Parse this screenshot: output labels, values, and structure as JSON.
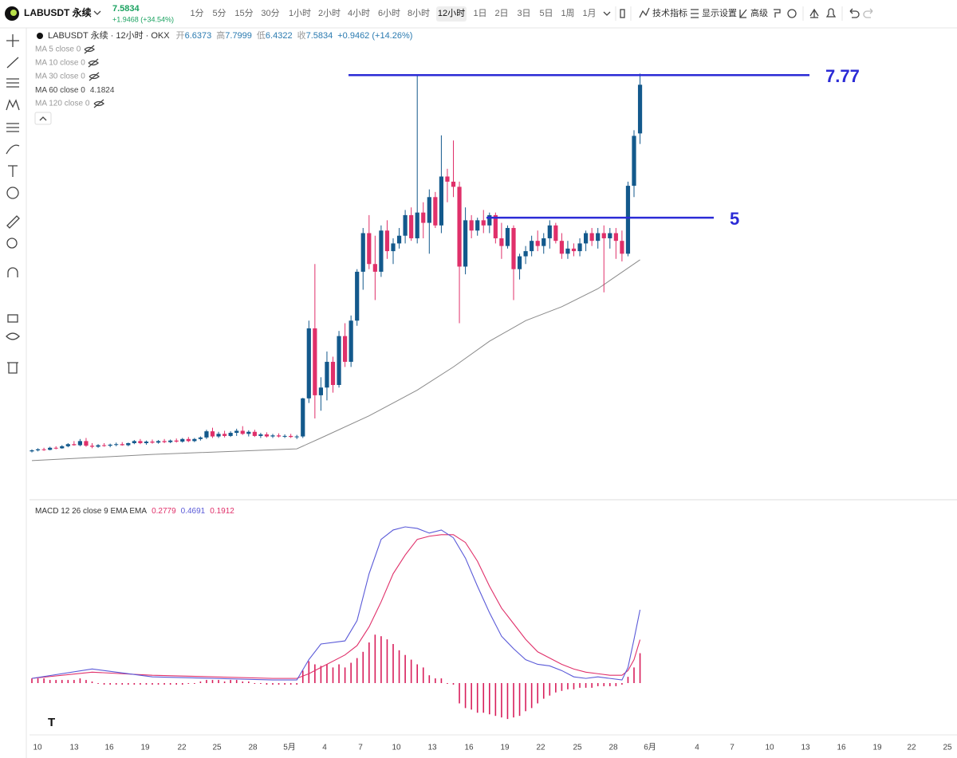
{
  "header": {
    "symbol": "LABUSDT 永续",
    "price": "7.5834",
    "change": "+1.9468 (+34.54%)",
    "intervals": [
      "1分",
      "5分",
      "15分",
      "30分",
      "1小时",
      "2小时",
      "4小时",
      "6小时",
      "8小时",
      "12小时",
      "1日",
      "2日",
      "3日",
      "5日",
      "1周",
      "1月"
    ],
    "active_interval": 9,
    "tools": [
      "技术指标",
      "显示设置",
      "高级"
    ]
  },
  "legend": {
    "title": "LABUSDT 永续 · 12小时 · OKX",
    "open_label": "开",
    "open": "6.6373",
    "high_label": "高",
    "high": "7.7999",
    "low_label": "低",
    "low": "6.4322",
    "close_label": "收",
    "close": "7.5834",
    "change": "+0.9462 (+14.26%)",
    "ma": [
      "MA 5 close 0",
      "MA 10 close 0",
      "MA 30 close 0",
      "MA 60 close 0",
      "MA 120 close 0"
    ],
    "ma60_value": "4.1824"
  },
  "chart_data": [
    {
      "type": "candlestick",
      "up_color": "#13598c",
      "down_color": "#e0306a",
      "ylim": [
        0,
        8
      ],
      "candles": [
        [
          0.46,
          0.5,
          0.44,
          0.48
        ],
        [
          0.48,
          0.52,
          0.46,
          0.5
        ],
        [
          0.5,
          0.53,
          0.47,
          0.49
        ],
        [
          0.49,
          0.55,
          0.48,
          0.53
        ],
        [
          0.53,
          0.56,
          0.5,
          0.52
        ],
        [
          0.52,
          0.58,
          0.51,
          0.56
        ],
        [
          0.56,
          0.62,
          0.54,
          0.6
        ],
        [
          0.6,
          0.66,
          0.57,
          0.58
        ],
        [
          0.58,
          0.7,
          0.56,
          0.66
        ],
        [
          0.66,
          0.72,
          0.55,
          0.57
        ],
        [
          0.57,
          0.62,
          0.52,
          0.55
        ],
        [
          0.55,
          0.6,
          0.53,
          0.58
        ],
        [
          0.58,
          0.62,
          0.55,
          0.57
        ],
        [
          0.57,
          0.61,
          0.54,
          0.59
        ],
        [
          0.59,
          0.63,
          0.56,
          0.6
        ],
        [
          0.6,
          0.64,
          0.57,
          0.58
        ],
        [
          0.58,
          0.63,
          0.56,
          0.62
        ],
        [
          0.62,
          0.68,
          0.6,
          0.66
        ],
        [
          0.66,
          0.7,
          0.6,
          0.62
        ],
        [
          0.62,
          0.67,
          0.59,
          0.65
        ],
        [
          0.65,
          0.69,
          0.61,
          0.63
        ],
        [
          0.63,
          0.68,
          0.61,
          0.66
        ],
        [
          0.66,
          0.7,
          0.62,
          0.64
        ],
        [
          0.64,
          0.69,
          0.62,
          0.67
        ],
        [
          0.67,
          0.71,
          0.63,
          0.65
        ],
        [
          0.65,
          0.72,
          0.63,
          0.7
        ],
        [
          0.7,
          0.74,
          0.64,
          0.66
        ],
        [
          0.66,
          0.72,
          0.64,
          0.7
        ],
        [
          0.7,
          0.75,
          0.67,
          0.73
        ],
        [
          0.73,
          0.88,
          0.7,
          0.85
        ],
        [
          0.85,
          0.92,
          0.72,
          0.75
        ],
        [
          0.75,
          0.84,
          0.72,
          0.8
        ],
        [
          0.8,
          0.86,
          0.73,
          0.76
        ],
        [
          0.76,
          0.85,
          0.74,
          0.82
        ],
        [
          0.82,
          0.9,
          0.76,
          0.86
        ],
        [
          0.86,
          0.95,
          0.78,
          0.8
        ],
        [
          0.8,
          0.87,
          0.75,
          0.84
        ],
        [
          0.84,
          0.88,
          0.74,
          0.76
        ],
        [
          0.76,
          0.82,
          0.72,
          0.79
        ],
        [
          0.79,
          0.83,
          0.73,
          0.75
        ],
        [
          0.75,
          0.8,
          0.72,
          0.77
        ],
        [
          0.77,
          0.81,
          0.73,
          0.75
        ],
        [
          0.75,
          0.79,
          0.72,
          0.76
        ],
        [
          0.76,
          0.8,
          0.72,
          0.74
        ],
        [
          0.74,
          0.78,
          0.7,
          0.75
        ],
        [
          0.75,
          1.5,
          0.72,
          1.49
        ],
        [
          1.49,
          3.0,
          1.4,
          2.85
        ],
        [
          2.85,
          4.1,
          1.1,
          1.55
        ],
        [
          1.55,
          1.9,
          1.25,
          1.7
        ],
        [
          1.7,
          2.4,
          1.45,
          2.2
        ],
        [
          2.2,
          2.3,
          1.6,
          1.75
        ],
        [
          1.75,
          2.8,
          1.7,
          2.7
        ],
        [
          2.7,
          2.95,
          2.1,
          2.2
        ],
        [
          2.2,
          3.1,
          2.1,
          3.0
        ],
        [
          3.0,
          4.0,
          2.9,
          3.95
        ],
        [
          3.95,
          4.8,
          3.6,
          4.7
        ],
        [
          4.7,
          5.05,
          4.0,
          4.1
        ],
        [
          4.1,
          4.65,
          3.4,
          3.95
        ],
        [
          3.95,
          4.85,
          3.85,
          4.75
        ],
        [
          4.75,
          4.95,
          4.2,
          4.35
        ],
        [
          4.35,
          4.6,
          4.1,
          4.5
        ],
        [
          4.5,
          4.8,
          4.4,
          4.65
        ],
        [
          4.65,
          5.15,
          4.5,
          5.05
        ],
        [
          5.05,
          5.2,
          4.55,
          4.6
        ],
        [
          4.6,
          7.77,
          4.5,
          5.1
        ],
        [
          5.1,
          5.3,
          4.6,
          4.9
        ],
        [
          4.9,
          5.55,
          4.3,
          5.4
        ],
        [
          5.4,
          5.5,
          4.8,
          4.85
        ],
        [
          4.85,
          6.6,
          4.7,
          5.8
        ],
        [
          5.8,
          5.95,
          5.3,
          5.7
        ],
        [
          5.7,
          6.5,
          5.4,
          5.6
        ],
        [
          5.6,
          5.7,
          2.95,
          4.05
        ],
        [
          4.05,
          5.2,
          3.9,
          4.95
        ],
        [
          4.95,
          5.05,
          4.6,
          4.75
        ],
        [
          4.75,
          5.0,
          4.65,
          4.95
        ],
        [
          4.95,
          5.15,
          4.7,
          4.85
        ],
        [
          4.85,
          5.1,
          4.7,
          5.05
        ],
        [
          5.05,
          5.1,
          4.5,
          4.6
        ],
        [
          4.6,
          4.9,
          4.2,
          4.45
        ],
        [
          4.45,
          4.85,
          4.4,
          4.8
        ],
        [
          4.8,
          4.85,
          3.4,
          4.0
        ],
        [
          4.0,
          4.3,
          3.8,
          4.25
        ],
        [
          4.25,
          4.45,
          4.1,
          4.35
        ],
        [
          4.35,
          4.65,
          4.25,
          4.55
        ],
        [
          4.55,
          4.75,
          4.35,
          4.45
        ],
        [
          4.45,
          4.7,
          4.3,
          4.6
        ],
        [
          4.6,
          4.95,
          4.4,
          4.85
        ],
        [
          4.85,
          4.9,
          4.5,
          4.55
        ],
        [
          4.55,
          4.7,
          4.2,
          4.3
        ],
        [
          4.3,
          4.55,
          4.2,
          4.4
        ],
        [
          4.4,
          4.5,
          4.25,
          4.35
        ],
        [
          4.35,
          4.6,
          4.25,
          4.5
        ],
        [
          4.5,
          4.75,
          4.35,
          4.7
        ],
        [
          4.7,
          4.8,
          4.45,
          4.55
        ],
        [
          4.55,
          4.8,
          4.4,
          4.7
        ],
        [
          4.7,
          4.85,
          3.55,
          4.6
        ],
        [
          4.6,
          4.8,
          4.4,
          4.7
        ],
        [
          4.7,
          4.8,
          4.2,
          4.55
        ],
        [
          4.55,
          4.75,
          4.15,
          4.3
        ],
        [
          4.3,
          5.7,
          4.25,
          5.62
        ],
        [
          5.62,
          6.7,
          5.4,
          6.59
        ],
        [
          6.6373,
          7.7999,
          6.4322,
          7.5834
        ]
      ],
      "ma60": {
        "color": "#8a8a8a",
        "x": [
          0,
          20,
          44,
          48,
          56,
          64,
          70,
          76,
          82,
          88,
          94,
          101
        ],
        "values": [
          0.28,
          0.4,
          0.51,
          0.72,
          1.15,
          1.65,
          2.1,
          2.6,
          3.0,
          3.27,
          3.62,
          4.1824
        ]
      },
      "levels": [
        7.77,
        5
      ],
      "level_color": "#2b2bd6",
      "xticks": [
        10,
        13,
        16,
        19,
        22,
        25,
        28,
        "5月",
        4,
        7,
        10,
        13,
        16,
        19,
        22,
        25,
        28,
        "6月",
        4,
        7,
        10,
        13,
        16,
        19,
        22,
        25
      ]
    },
    {
      "type": "macd",
      "title": "MACD 12 26 close 9 EMA EMA",
      "ylim": [
        -0.3,
        1.1
      ],
      "series": [
        {
          "color": "#e0306a",
          "label": "0.2779",
          "x": [
            0,
            10,
            20,
            30,
            40,
            44,
            46,
            48,
            52,
            54,
            56,
            58,
            60,
            62,
            64,
            66,
            68,
            70,
            72,
            74,
            76,
            78,
            80,
            82,
            84,
            86,
            88,
            90,
            92,
            94,
            96,
            98,
            99,
            100,
            101
          ],
          "values": [
            0.03,
            0.07,
            0.05,
            0.04,
            0.03,
            0.03,
            0.06,
            0.1,
            0.18,
            0.24,
            0.36,
            0.52,
            0.7,
            0.82,
            0.92,
            0.94,
            0.95,
            0.95,
            0.9,
            0.78,
            0.62,
            0.48,
            0.38,
            0.28,
            0.2,
            0.16,
            0.12,
            0.09,
            0.07,
            0.06,
            0.05,
            0.05,
            0.08,
            0.15,
            0.2779
          ]
        },
        {
          "color": "#5a5ad8",
          "label": "0.4691",
          "x": [
            0,
            10,
            20,
            30,
            40,
            44,
            46,
            48,
            52,
            54,
            56,
            58,
            60,
            62,
            64,
            66,
            68,
            70,
            72,
            74,
            76,
            78,
            80,
            82,
            84,
            86,
            88,
            90,
            92,
            94,
            96,
            98,
            99,
            100,
            101
          ],
          "values": [
            0.03,
            0.09,
            0.04,
            0.03,
            0.02,
            0.02,
            0.15,
            0.25,
            0.27,
            0.4,
            0.7,
            0.92,
            0.98,
            1.0,
            0.99,
            0.96,
            0.98,
            0.93,
            0.8,
            0.62,
            0.45,
            0.3,
            0.22,
            0.15,
            0.12,
            0.11,
            0.08,
            0.04,
            0.03,
            0.04,
            0.03,
            0.02,
            0.1,
            0.28,
            0.4691
          ]
        }
      ],
      "histogram": {
        "color": "#d81e5b",
        "label": "0.1912",
        "values": [
          0.03,
          0.03,
          0.03,
          0.02,
          0.02,
          0.02,
          0.02,
          0.02,
          0.03,
          0.02,
          0.01,
          0,
          -0.01,
          -0.01,
          -0.01,
          -0.01,
          -0.01,
          -0.01,
          -0.01,
          -0.01,
          -0.01,
          -0.01,
          -0.01,
          -0.01,
          -0.01,
          -0.01,
          0,
          0,
          0.01,
          0.02,
          0.02,
          0.02,
          0.01,
          0.02,
          0.02,
          0.01,
          0.01,
          0,
          0,
          -0.01,
          -0.01,
          -0.01,
          -0.01,
          -0.01,
          -0.01,
          0.08,
          0.14,
          0.12,
          0.11,
          0.12,
          0.1,
          0.12,
          0.1,
          0.13,
          0.16,
          0.2,
          0.26,
          0.31,
          0.3,
          0.28,
          0.25,
          0.21,
          0.18,
          0.15,
          0.12,
          0.1,
          0.05,
          0.03,
          0.03,
          0,
          -0.01,
          -0.13,
          -0.16,
          -0.17,
          -0.19,
          -0.19,
          -0.2,
          -0.21,
          -0.22,
          -0.23,
          -0.22,
          -0.21,
          -0.18,
          -0.16,
          -0.13,
          -0.1,
          -0.08,
          -0.06,
          -0.05,
          -0.04,
          -0.04,
          -0.03,
          -0.03,
          -0.03,
          -0.02,
          -0.02,
          -0.02,
          -0.02,
          -0.01,
          0.04,
          0.1,
          0.1912
        ]
      }
    }
  ]
}
